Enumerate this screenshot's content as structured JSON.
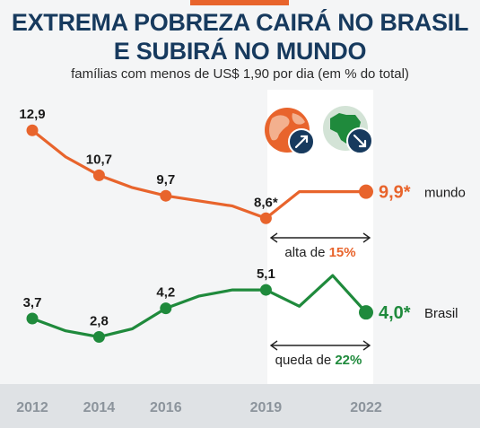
{
  "header": {
    "title_line1": "EXTREMA POBREZA CAIRÁ NO BRASIL",
    "title_line2": "E SUBIRÁ NO MUNDO",
    "subtitle": "famílias com menos de US$ 1,90 por dia (em % do total)"
  },
  "colors": {
    "mundo": "#e8642c",
    "brasil": "#1f8a3c",
    "title": "#173a5e",
    "icon_blue": "#173a5e"
  },
  "chart_data": {
    "type": "line",
    "x_ticks": [
      "2012",
      "2014",
      "2016",
      "2019",
      "2022"
    ],
    "series": [
      {
        "name": "mundo",
        "end_label": "9,9*",
        "points": [
          {
            "x": 2012,
            "y": 12.9,
            "label": "12,9"
          },
          {
            "x": 2013,
            "y": 11.6
          },
          {
            "x": 2014,
            "y": 10.7,
            "label": "10,7"
          },
          {
            "x": 2015,
            "y": 10.1
          },
          {
            "x": 2016,
            "y": 9.7,
            "label": "9,7"
          },
          {
            "x": 2018,
            "y": 9.2
          },
          {
            "x": 2019,
            "y": 8.6,
            "label": "8,6*"
          },
          {
            "x": 2020,
            "y": 9.9
          },
          {
            "x": 2021,
            "y": 9.9
          },
          {
            "x": 2022,
            "y": 9.9
          }
        ]
      },
      {
        "name": "Brasil",
        "end_label": "4,0*",
        "points": [
          {
            "x": 2012,
            "y": 3.7,
            "label": "3,7"
          },
          {
            "x": 2013,
            "y": 3.1
          },
          {
            "x": 2014,
            "y": 2.8,
            "label": "2,8"
          },
          {
            "x": 2015,
            "y": 3.2
          },
          {
            "x": 2016,
            "y": 4.2,
            "label": "4,2"
          },
          {
            "x": 2017,
            "y": 4.8
          },
          {
            "x": 2018,
            "y": 5.1
          },
          {
            "x": 2019,
            "y": 5.1,
            "label": "5,1"
          },
          {
            "x": 2020,
            "y": 4.3
          },
          {
            "x": 2021,
            "y": 5.8
          },
          {
            "x": 2022,
            "y": 4.0
          }
        ]
      }
    ],
    "annotations": {
      "mundo_change_prefix": "alta de ",
      "mundo_change_value": "15%",
      "brasil_change_prefix": "queda de ",
      "brasil_change_value": "22%"
    }
  }
}
